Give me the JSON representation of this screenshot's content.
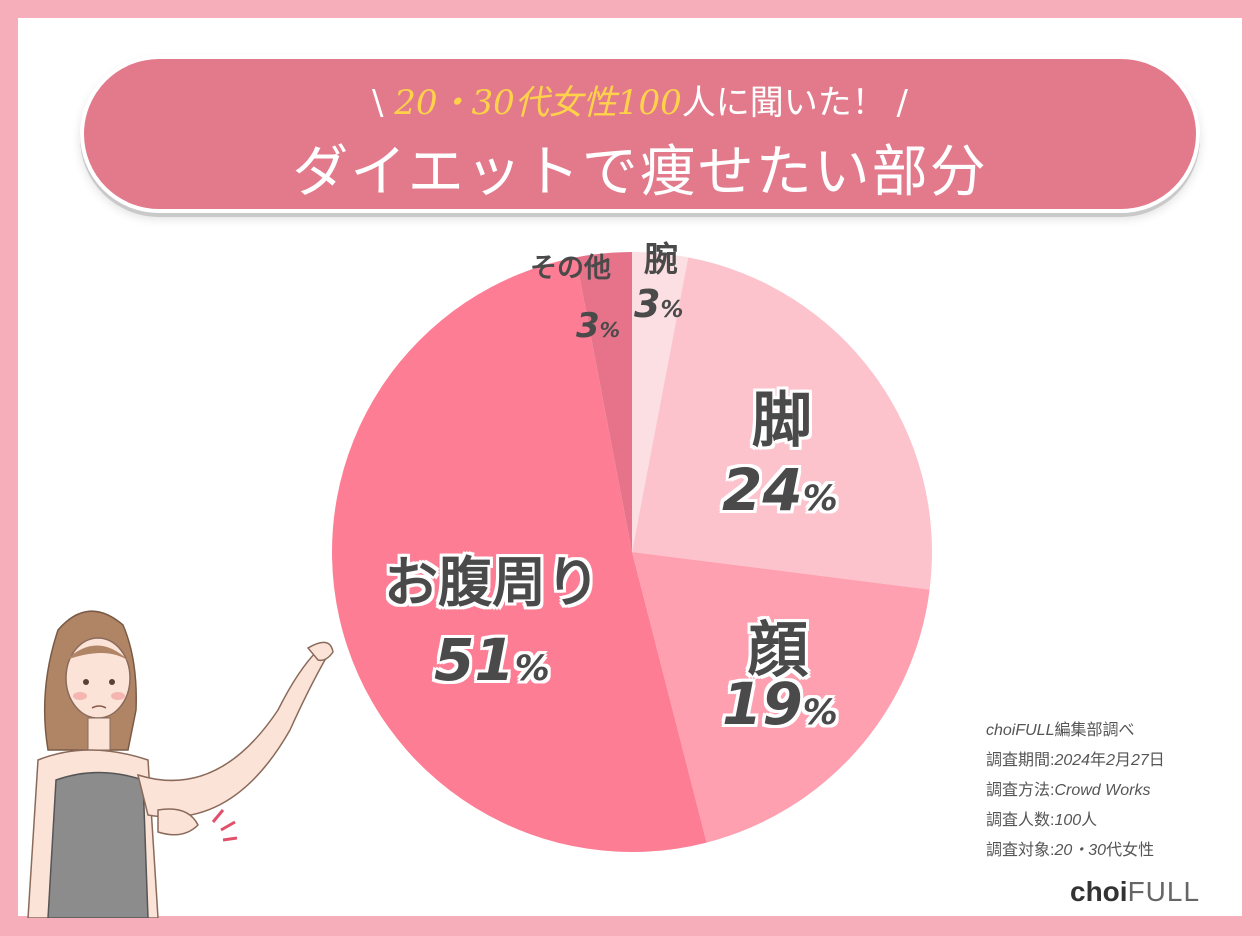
{
  "header": {
    "subtitle_open": "\\ ",
    "subtitle_hl1": "20・30",
    "subtitle_mid": "代女性",
    "subtitle_hl2": "100",
    "subtitle_end": "人に聞いた！ /",
    "title": "ダイエットで痩せたい部分"
  },
  "chart_data": {
    "type": "pie",
    "title": "ダイエットで痩せたい部分",
    "slices": [
      {
        "label": "腕",
        "value": 3,
        "display": "3",
        "color": "#fcdfe3"
      },
      {
        "label": "脚",
        "value": 24,
        "display": "24",
        "color": "#fcc3cd"
      },
      {
        "label": "顔",
        "value": 19,
        "display": "19",
        "color": "#fea0b0"
      },
      {
        "label": "お腹周り",
        "value": 51,
        "display": "51",
        "color": "#fd7e94"
      },
      {
        "label": "その他",
        "value": 3,
        "display": "3",
        "color": "#e67389"
      }
    ],
    "unit": "%"
  },
  "notes": {
    "line1_a": "choiFULL",
    "line1_b": "編集部調べ",
    "line2_a": "調査期間:",
    "line2_b": "2024",
    "line2_c": "年",
    "line2_d": "2",
    "line2_e": "月",
    "line2_f": "27",
    "line2_g": "日",
    "line3_a": "調査方法:",
    "line3_b": "Crowd Works",
    "line4_a": "調査人数:",
    "line4_b": "100",
    "line4_c": "人",
    "line5_a": "調査対象:",
    "line5_b": "20・30",
    "line5_c": "代女性"
  },
  "logo": {
    "choi": "choi",
    "full": "FULL"
  }
}
